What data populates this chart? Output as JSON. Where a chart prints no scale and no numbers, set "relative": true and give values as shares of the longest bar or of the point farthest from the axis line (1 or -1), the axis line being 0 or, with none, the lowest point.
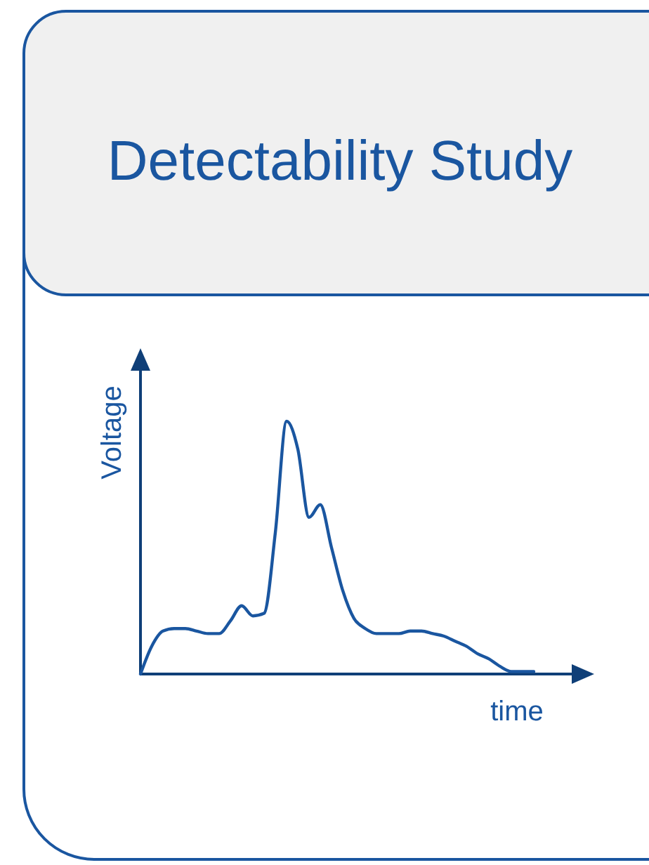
{
  "chart_data": {
    "type": "line",
    "title": "Detectability Study",
    "xlabel": "time",
    "ylabel": "Voltage",
    "relative": true,
    "categories": [
      null,
      null,
      null,
      null,
      null,
      null,
      null,
      null,
      null,
      null,
      null,
      null,
      null,
      null,
      null,
      null,
      null,
      null,
      null,
      null,
      null,
      null,
      null,
      null,
      null,
      null,
      null,
      null,
      null,
      null,
      null,
      null,
      null,
      null,
      null,
      null
    ],
    "series": [
      {
        "color": "#1a56a0",
        "values": [
          0,
          0.11,
          0.17,
          0.18,
          0.18,
          0.17,
          0.16,
          0.16,
          0.21,
          0.27,
          0.23,
          0.24,
          0.56,
          1,
          0.89,
          0.62,
          0.67,
          0.5,
          0.33,
          0.22,
          0.18,
          0.16,
          0.16,
          0.16,
          0.17,
          0.17,
          0.16,
          0.15,
          0.13,
          0.11,
          0.08,
          0.06,
          0.03,
          0.01,
          0.01,
          0.01
        ]
      }
    ]
  }
}
